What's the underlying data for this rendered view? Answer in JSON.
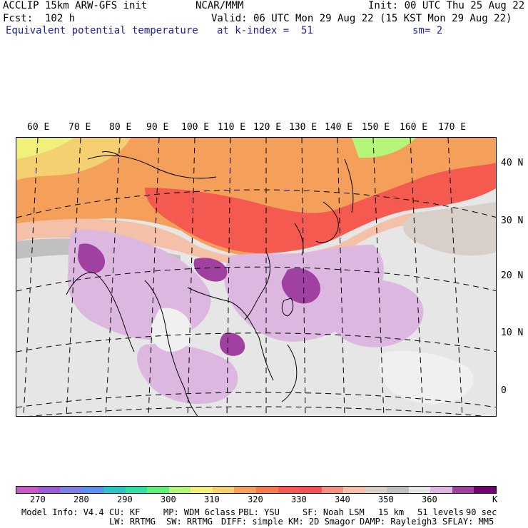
{
  "header": {
    "model": "ACCLIP 15km ARW-GFS init",
    "org": "NCAR/MMM",
    "init": "Init: 00 UTC Thu 25 Aug 22",
    "fcst": "Fcst:  102 h",
    "valid": "Valid: 06 UTC Mon 29 Aug 22 (15 KST Mon 29 Aug 22)",
    "field": "Equivalent potential temperature",
    "level": "at k-index =  51",
    "smooth": "sm= 2"
  },
  "lon_labels": [
    "60 E",
    "70 E",
    "80 E",
    "90 E",
    "100 E",
    "110 E",
    "120 E",
    "130 E",
    "140 E",
    "150 E",
    "160 E",
    "170 E"
  ],
  "lat_labels": [
    "40 N",
    "30 N",
    "20 N",
    "10 N",
    "0"
  ],
  "colorbar": {
    "colors": [
      "#c857c8",
      "#9b5bd9",
      "#7f7fe8",
      "#5a8ef0",
      "#2fc4c4",
      "#2fe0a0",
      "#5ff07a",
      "#b5f57a",
      "#f0f07a",
      "#f5d070",
      "#f5a05a",
      "#f57a50",
      "#f55a50",
      "#f5505a",
      "#f59080",
      "#f5c0a8",
      "#d8d0c8",
      "#c0c0c0",
      "#e6e6e6",
      "#dcb8e0",
      "#a040a0",
      "#700070"
    ],
    "labels": [
      "270",
      "280",
      "290",
      "300",
      "310",
      "320",
      "330",
      "340",
      "350",
      "360"
    ],
    "unit": "K"
  },
  "model_info": {
    "line1": [
      "Model Info: V4.4",
      "CU: KF",
      "MP: WDM 6class",
      "PBL: YSU",
      "SF: Noah LSM",
      "15 km",
      "51 levels",
      "90 sec"
    ],
    "line2": [
      "LW: RRTMG",
      "SW: RRTMG",
      "DIFF: simple",
      "KM: 2D Smagor",
      "DAMP: Rayleigh3",
      "SFLAY: MM5"
    ]
  }
}
